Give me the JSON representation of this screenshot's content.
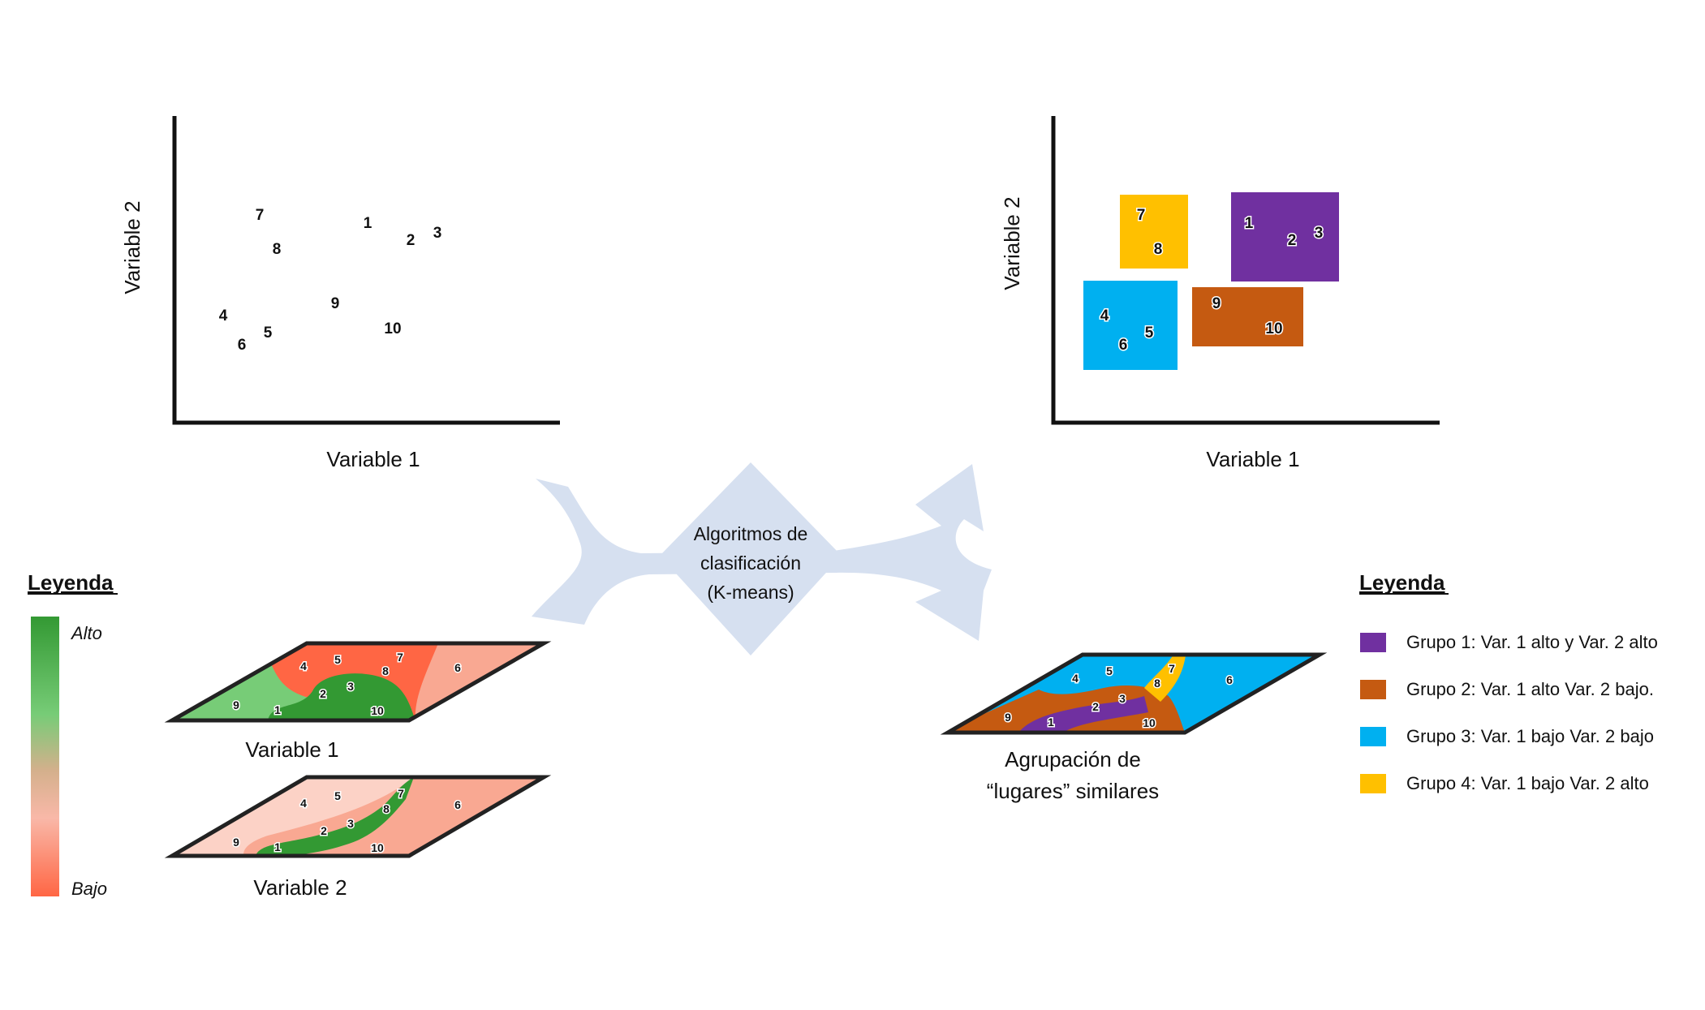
{
  "scatter_left": {
    "xlabel": "Variable 1",
    "ylabel": "Variable 2",
    "points": [
      "7",
      "8",
      "1",
      "2",
      "3",
      "4",
      "6",
      "5",
      "9",
      "10"
    ]
  },
  "scatter_right": {
    "xlabel": "Variable 1",
    "ylabel": "Variable 2",
    "points": [
      "7",
      "8",
      "1",
      "2",
      "3",
      "4",
      "6",
      "5",
      "9",
      "10"
    ]
  },
  "center": {
    "line1": "Algoritmos de",
    "line2": "clasificación",
    "line3": "(K-means)"
  },
  "legend_left": {
    "title": "Leyenda",
    "high": "Alto",
    "low": "Bajo"
  },
  "maps": {
    "variable1_caption": "Variable 1",
    "variable2_caption": "Variable 2",
    "grouping_caption_line1": "Agrupación de",
    "grouping_caption_line2": "“lugares” similares",
    "labels": [
      "4",
      "5",
      "7",
      "8",
      "6",
      "2",
      "3",
      "9",
      "1",
      "10"
    ]
  },
  "legend_right": {
    "title": "Leyenda",
    "items": [
      {
        "label": "Grupo 1: Var. 1 alto y  Var. 2 alto",
        "color": "#7030a0"
      },
      {
        "label": "Grupo 2: Var. 1 alto Var. 2 bajo.",
        "color": "#c55a11"
      },
      {
        "label": "Grupo 3: Var. 1 bajo  Var. 2 bajo",
        "color": "#00b0f0"
      },
      {
        "label": "Grupo 4: Var. 1 bajo Var. 2 alto",
        "color": "#ffc000"
      }
    ]
  },
  "colors": {
    "high_green": "#339933",
    "mid_green": "#77cc77",
    "low_pink": "#f9b8a8",
    "low_red": "#ff6644",
    "arrow": "#d6e0f0"
  }
}
